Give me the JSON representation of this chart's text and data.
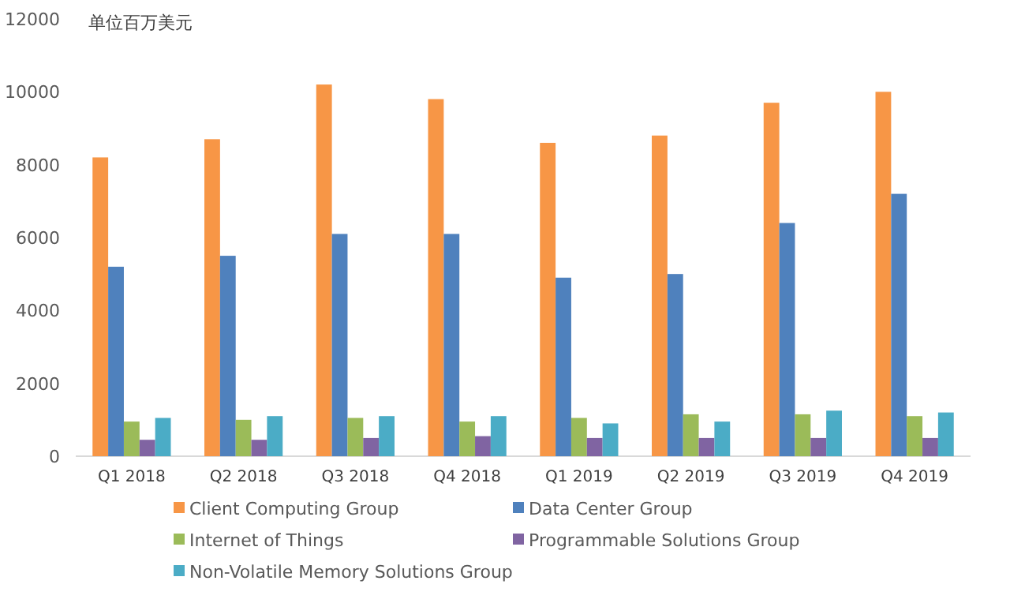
{
  "chart_data": {
    "type": "bar",
    "ylabel": "单位百万美元",
    "categories": [
      "Q1 2018",
      "Q2 2018",
      "Q3 2018",
      "Q4 2018",
      "Q1 2019",
      "Q2 2019",
      "Q3 2019",
      "Q4 2019"
    ],
    "series": [
      {
        "name": "Client Computing Group",
        "color": "#f79646",
        "values": [
          8200,
          8700,
          10200,
          9800,
          8600,
          8800,
          9700,
          10000
        ]
      },
      {
        "name": "Data Center Group",
        "color": "#4f81bd",
        "values": [
          5200,
          5500,
          6100,
          6100,
          4900,
          5000,
          6400,
          7200
        ]
      },
      {
        "name": "Internet of Things",
        "color": "#9bbb59",
        "values": [
          950,
          1000,
          1050,
          950,
          1050,
          1150,
          1150,
          1100
        ]
      },
      {
        "name": "Programmable Solutions Group",
        "color": "#8064a2",
        "values": [
          450,
          450,
          500,
          550,
          500,
          500,
          500,
          500
        ]
      },
      {
        "name": "Non-Volatile Memory Solutions Group",
        "color": "#4bacc6",
        "values": [
          1050,
          1100,
          1100,
          1100,
          900,
          950,
          1250,
          1200
        ]
      }
    ],
    "ylim": [
      0,
      12000
    ],
    "yticks": [
      0,
      2000,
      4000,
      6000,
      8000,
      10000,
      12000
    ],
    "grid": false,
    "legend": "bottom"
  }
}
